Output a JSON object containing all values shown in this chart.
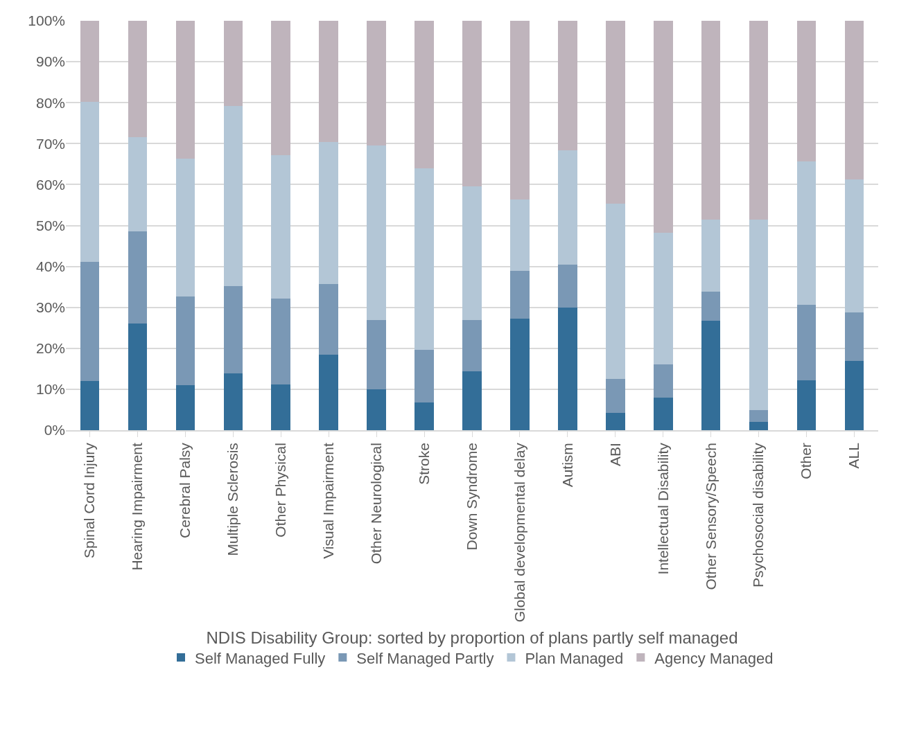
{
  "chart_data": {
    "type": "bar",
    "stacked": true,
    "xlabel": "NDIS Disability Group: sorted by proportion of plans partly self managed",
    "categories": [
      "Spinal Cord Injury",
      "Hearing Impairment",
      "Cerebral Palsy",
      "Multiple Sclerosis",
      "Other Physical",
      "Visual Impairment",
      "Other Neurological",
      "Stroke",
      "Down Syndrome",
      "Global developmental delay",
      "Autism",
      "ABI",
      "Intellectual Disability",
      "Other Sensory/Speech",
      "Psychosocial disability",
      "Other",
      "ALL"
    ],
    "series": [
      {
        "name": "Self Managed Fully",
        "color": "#336e98",
        "values": [
          12,
          26,
          11,
          13.8,
          11.1,
          18.4,
          9.9,
          6.8,
          14.4,
          27.3,
          29.9,
          4.2,
          8,
          26.7,
          2,
          12.1,
          17
        ]
      },
      {
        "name": "Self Managed Partly",
        "color": "#7a98b5",
        "values": [
          29.2,
          22.6,
          21.6,
          21.4,
          21,
          17.3,
          17,
          12.9,
          12.5,
          11.7,
          10.6,
          8.4,
          8.1,
          7.1,
          2.9,
          18.5,
          11.8
        ]
      },
      {
        "name": "Plan Managed",
        "color": "#b3c6d6",
        "values": [
          39,
          23,
          33.8,
          44,
          35,
          34.7,
          42.7,
          44.3,
          32.6,
          17.4,
          27.8,
          42.7,
          32.2,
          17.7,
          46.6,
          35.1,
          32.4
        ]
      },
      {
        "name": "Agency Managed",
        "color": "#bfb4bc",
        "values": [
          19.8,
          28.4,
          33.6,
          20.8,
          32.9,
          29.6,
          30.4,
          36,
          40.5,
          43.6,
          31.7,
          44.7,
          51.7,
          48.5,
          48.5,
          34.3,
          38.8
        ]
      }
    ],
    "ylim": [
      0,
      100
    ],
    "yticks": [
      {
        "value": 0,
        "label": "0%"
      },
      {
        "value": 10,
        "label": "10%"
      },
      {
        "value": 20,
        "label": "20%"
      },
      {
        "value": 30,
        "label": "30%"
      },
      {
        "value": 40,
        "label": "40%"
      },
      {
        "value": 50,
        "label": "50%"
      },
      {
        "value": 60,
        "label": "60%"
      },
      {
        "value": 70,
        "label": "70%"
      },
      {
        "value": 80,
        "label": "80%"
      },
      {
        "value": 90,
        "label": "90%"
      },
      {
        "value": 100,
        "label": "100%"
      }
    ],
    "grid": "y",
    "legend": "bottom"
  }
}
